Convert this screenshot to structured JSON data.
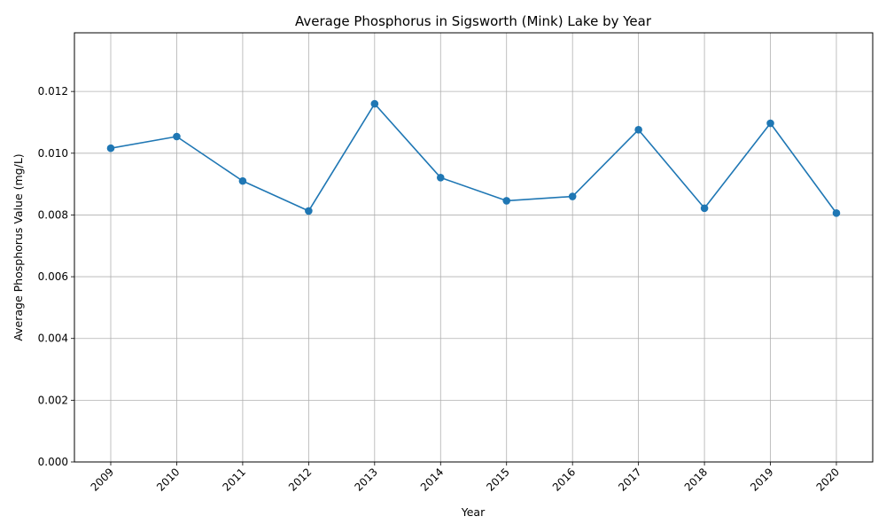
{
  "chart_data": {
    "type": "line",
    "title": "Average Phosphorus in Sigsworth (Mink) Lake by Year",
    "xlabel": "Year",
    "ylabel": "Average Phosphorus Value (mg/L)",
    "categories": [
      "2009",
      "2010",
      "2011",
      "2012",
      "2013",
      "2014",
      "2015",
      "2016",
      "2017",
      "2018",
      "2019",
      "2020"
    ],
    "series": [
      {
        "values": [
          0.01016,
          0.01054,
          0.0091,
          0.00813,
          0.0116,
          0.00921,
          0.00846,
          0.0086,
          0.01076,
          0.00822,
          0.01097,
          0.00806
        ],
        "color": "#1f77b4",
        "marker": "circle"
      }
    ],
    "ylim": [
      0,
      0.0139
    ],
    "yticks": [
      "0.000",
      "0.002",
      "0.004",
      "0.006",
      "0.008",
      "0.010",
      "0.012"
    ],
    "ytick_values": [
      0,
      0.002,
      0.004,
      0.006,
      0.008,
      0.01,
      0.012
    ],
    "grid": true,
    "xtick_rotation": 45
  }
}
